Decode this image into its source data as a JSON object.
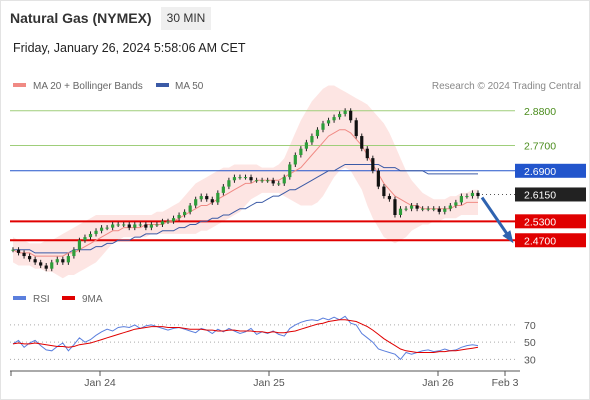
{
  "header": {
    "title": "Natural Gas (NYMEX)",
    "timeframe": "30 MIN",
    "datetime": "Friday, January 26, 2024 5:58:06 AM CET"
  },
  "legend": {
    "ma20_label": "MA 20 + Bollinger Bands",
    "ma50_label": "MA 50",
    "rsi_label": "RSI",
    "ma9_label": "9MA",
    "ma20_color": "#f08a84",
    "ma50_color": "#3b5aa6",
    "rsi_color": "#5b7fdd",
    "ma9_color": "#e00000"
  },
  "credit": "Research © 2024 Trading Central",
  "chart_data": [
    {
      "type": "candlestick",
      "title": "Natural Gas (NYMEX)",
      "timeframe": "30 MIN",
      "x_ticks": [
        "Jan 24",
        "Jan 25",
        "Jan 26",
        "Feb 3"
      ],
      "ylim": [
        2.36,
        2.93
      ],
      "grid": false,
      "legend_position": "top-left",
      "last_price": 2.615,
      "last_price_label": "2.6150",
      "levels": [
        {
          "value": 2.88,
          "label": "2.8800",
          "kind": "resistance",
          "color": "#9fce7a"
        },
        {
          "value": 2.77,
          "label": "2.7700",
          "kind": "resistance",
          "color": "#9fce7a"
        },
        {
          "value": 2.69,
          "label": "2.6900",
          "kind": "pivot",
          "color": "#2255cc"
        },
        {
          "value": 2.53,
          "label": "2.5300",
          "kind": "support",
          "color": "#e00000"
        },
        {
          "value": 2.47,
          "label": "2.4700",
          "kind": "support",
          "color": "#e00000"
        }
      ],
      "forecast_arrow": {
        "from": 2.615,
        "to": 2.47,
        "color": "#2f63b0"
      },
      "close_series": [
        2.44,
        2.43,
        2.42,
        2.41,
        2.4,
        2.39,
        2.38,
        2.4,
        2.41,
        2.4,
        2.42,
        2.44,
        2.47,
        2.48,
        2.49,
        2.5,
        2.51,
        2.51,
        2.52,
        2.52,
        2.52,
        2.51,
        2.52,
        2.52,
        2.51,
        2.52,
        2.52,
        2.53,
        2.53,
        2.54,
        2.55,
        2.56,
        2.58,
        2.6,
        2.61,
        2.6,
        2.59,
        2.62,
        2.64,
        2.66,
        2.67,
        2.67,
        2.67,
        2.66,
        2.66,
        2.66,
        2.66,
        2.65,
        2.65,
        2.67,
        2.71,
        2.74,
        2.76,
        2.78,
        2.8,
        2.82,
        2.84,
        2.85,
        2.86,
        2.87,
        2.88,
        2.85,
        2.8,
        2.76,
        2.73,
        2.69,
        2.64,
        2.61,
        2.6,
        2.55,
        2.57,
        2.57,
        2.58,
        2.57,
        2.57,
        2.57,
        2.57,
        2.56,
        2.57,
        2.58,
        2.59,
        2.61,
        2.61,
        2.62,
        2.61
      ],
      "ma20_series": [
        2.44,
        2.43,
        2.43,
        2.43,
        2.42,
        2.42,
        2.42,
        2.42,
        2.42,
        2.42,
        2.43,
        2.43,
        2.44,
        2.45,
        2.46,
        2.47,
        2.48,
        2.49,
        2.5,
        2.5,
        2.51,
        2.51,
        2.51,
        2.51,
        2.52,
        2.52,
        2.52,
        2.52,
        2.53,
        2.53,
        2.54,
        2.55,
        2.56,
        2.57,
        2.58,
        2.58,
        2.59,
        2.6,
        2.61,
        2.62,
        2.63,
        2.64,
        2.65,
        2.65,
        2.66,
        2.66,
        2.66,
        2.66,
        2.66,
        2.67,
        2.68,
        2.69,
        2.7,
        2.72,
        2.74,
        2.76,
        2.78,
        2.8,
        2.81,
        2.82,
        2.82,
        2.81,
        2.79,
        2.77,
        2.74,
        2.71,
        2.68,
        2.65,
        2.63,
        2.61,
        2.6,
        2.59,
        2.58,
        2.58,
        2.57,
        2.57,
        2.57,
        2.57,
        2.57,
        2.57,
        2.58,
        2.58,
        2.59,
        2.59,
        2.59
      ],
      "bb_upper_series": [
        2.48,
        2.47,
        2.47,
        2.46,
        2.46,
        2.46,
        2.47,
        2.47,
        2.48,
        2.49,
        2.5,
        2.51,
        2.52,
        2.53,
        2.54,
        2.55,
        2.55,
        2.55,
        2.55,
        2.55,
        2.55,
        2.55,
        2.55,
        2.55,
        2.55,
        2.55,
        2.56,
        2.56,
        2.57,
        2.58,
        2.59,
        2.61,
        2.63,
        2.65,
        2.66,
        2.67,
        2.68,
        2.69,
        2.7,
        2.7,
        2.71,
        2.71,
        2.71,
        2.71,
        2.71,
        2.7,
        2.7,
        2.7,
        2.71,
        2.73,
        2.77,
        2.81,
        2.85,
        2.88,
        2.91,
        2.93,
        2.95,
        2.96,
        2.96,
        2.95,
        2.94,
        2.93,
        2.92,
        2.91,
        2.9,
        2.88,
        2.86,
        2.84,
        2.81,
        2.77,
        2.73,
        2.69,
        2.66,
        2.64,
        2.62,
        2.61,
        2.6,
        2.6,
        2.6,
        2.61,
        2.61,
        2.62,
        2.62,
        2.63,
        2.63
      ],
      "bb_lower_series": [
        2.4,
        2.39,
        2.39,
        2.39,
        2.38,
        2.38,
        2.37,
        2.37,
        2.36,
        2.35,
        2.36,
        2.36,
        2.37,
        2.38,
        2.39,
        2.4,
        2.42,
        2.44,
        2.46,
        2.47,
        2.48,
        2.48,
        2.48,
        2.48,
        2.48,
        2.49,
        2.49,
        2.49,
        2.49,
        2.49,
        2.49,
        2.49,
        2.49,
        2.49,
        2.5,
        2.5,
        2.51,
        2.52,
        2.53,
        2.54,
        2.55,
        2.56,
        2.58,
        2.6,
        2.61,
        2.62,
        2.62,
        2.62,
        2.62,
        2.61,
        2.6,
        2.59,
        2.58,
        2.58,
        2.58,
        2.59,
        2.61,
        2.64,
        2.67,
        2.69,
        2.7,
        2.69,
        2.66,
        2.63,
        2.58,
        2.54,
        2.51,
        2.48,
        2.47,
        2.46,
        2.47,
        2.48,
        2.5,
        2.51,
        2.52,
        2.52,
        2.53,
        2.53,
        2.54,
        2.54,
        2.54,
        2.55,
        2.55,
        2.55,
        2.55
      ],
      "ma50_series": [
        2.44,
        2.44,
        2.44,
        2.44,
        2.43,
        2.43,
        2.43,
        2.43,
        2.43,
        2.43,
        2.43,
        2.44,
        2.44,
        2.44,
        2.44,
        2.45,
        2.45,
        2.46,
        2.46,
        2.47,
        2.47,
        2.47,
        2.48,
        2.48,
        2.49,
        2.49,
        2.49,
        2.5,
        2.5,
        2.5,
        2.51,
        2.51,
        2.52,
        2.52,
        2.53,
        2.53,
        2.54,
        2.54,
        2.55,
        2.55,
        2.56,
        2.57,
        2.57,
        2.58,
        2.59,
        2.59,
        2.6,
        2.61,
        2.61,
        2.62,
        2.63,
        2.63,
        2.64,
        2.65,
        2.66,
        2.67,
        2.68,
        2.69,
        2.69,
        2.7,
        2.71,
        2.71,
        2.71,
        2.71,
        2.71,
        2.71,
        2.71,
        2.7,
        2.7,
        2.7,
        2.69,
        2.69,
        2.69,
        2.69,
        2.69,
        2.68,
        2.68,
        2.68,
        2.68,
        2.68,
        2.68,
        2.68,
        2.68,
        2.68,
        2.68
      ]
    },
    {
      "type": "line",
      "title": "RSI",
      "ylim": [
        20,
        85
      ],
      "y_ticks": [
        30,
        50,
        70
      ],
      "series": [
        {
          "name": "RSI",
          "color": "#5b7fdd",
          "values": [
            48,
            52,
            44,
            49,
            52,
            46,
            41,
            40,
            45,
            49,
            40,
            47,
            55,
            50,
            53,
            58,
            62,
            65,
            63,
            67,
            68,
            67,
            70,
            66,
            69,
            70,
            68,
            66,
            64,
            66,
            67,
            65,
            63,
            61,
            66,
            64,
            60,
            65,
            62,
            66,
            63,
            60,
            62,
            66,
            59,
            62,
            60,
            63,
            59,
            57,
            66,
            70,
            73,
            75,
            76,
            75,
            78,
            76,
            79,
            76,
            80,
            72,
            70,
            60,
            55,
            50,
            42,
            40,
            38,
            36,
            30,
            38,
            36,
            38,
            40,
            41,
            39,
            40,
            42,
            40,
            41,
            44,
            46,
            47,
            46
          ]
        },
        {
          "name": "9MA",
          "color": "#e00000",
          "values": [
            48,
            49,
            48,
            48,
            49,
            48,
            47,
            46,
            45,
            45,
            44,
            45,
            47,
            48,
            49,
            51,
            53,
            55,
            57,
            59,
            61,
            63,
            65,
            66,
            67,
            68,
            68,
            68,
            67,
            67,
            67,
            66,
            65,
            65,
            65,
            64,
            64,
            63,
            63,
            64,
            64,
            63,
            63,
            63,
            62,
            62,
            61,
            62,
            61,
            61,
            62,
            63,
            65,
            67,
            69,
            71,
            72,
            74,
            75,
            76,
            76,
            75,
            74,
            71,
            68,
            64,
            59,
            54,
            50,
            46,
            42,
            40,
            39,
            38,
            38,
            38,
            38,
            39,
            39,
            40,
            40,
            41,
            42,
            43,
            44
          ]
        }
      ]
    }
  ]
}
